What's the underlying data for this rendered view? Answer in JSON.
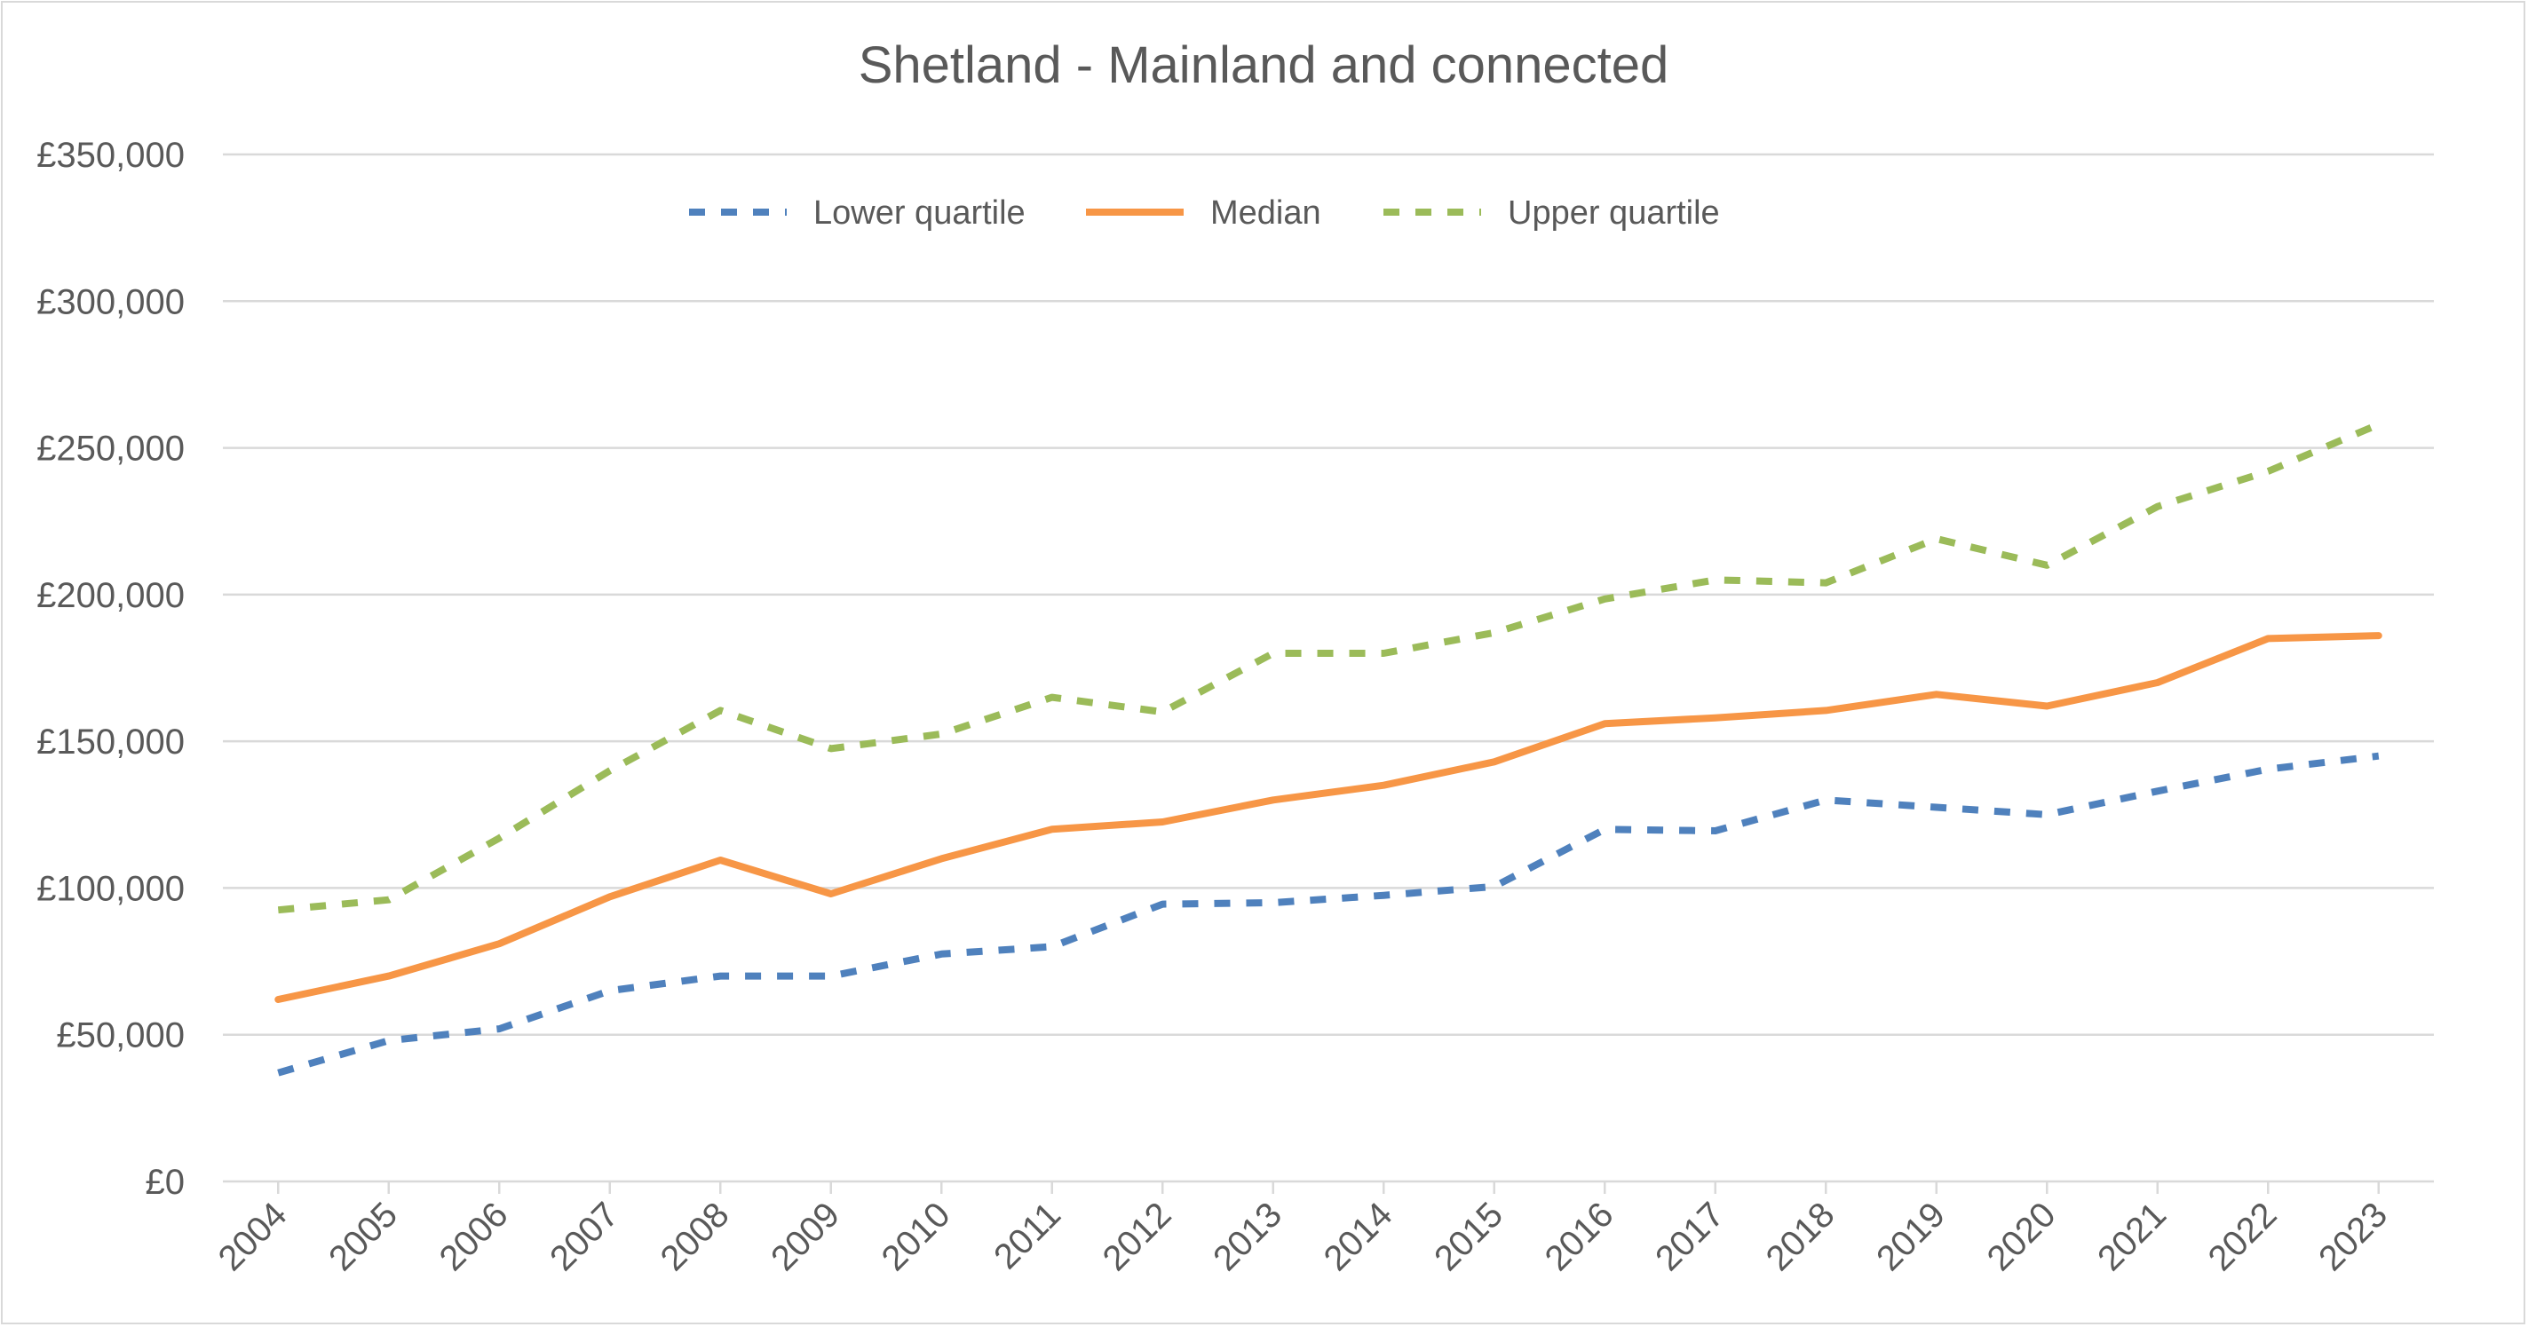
{
  "chart_data": {
    "type": "line",
    "title": "Shetland - Mainland and connected",
    "xlabel": "",
    "ylabel": "",
    "categories": [
      "2004",
      "2005",
      "2006",
      "2007",
      "2008",
      "2009",
      "2010",
      "2011",
      "2012",
      "2013",
      "2014",
      "2015",
      "2016",
      "2017",
      "2018",
      "2019",
      "2020",
      "2021",
      "2022",
      "2023"
    ],
    "ylim": [
      0,
      350000
    ],
    "yticks": [
      0,
      50000,
      100000,
      150000,
      200000,
      250000,
      300000,
      350000
    ],
    "ytick_labels": [
      "£0",
      "£50,000",
      "£100,000",
      "£150,000",
      "£200,000",
      "£250,000",
      "£300,000",
      "£350,000"
    ],
    "grid": true,
    "legend_position": "top-center",
    "series": [
      {
        "name": "Lower quartile",
        "color": "#4f81bd",
        "style": "dashed",
        "values": [
          37000,
          48000,
          52000,
          65000,
          70000,
          70000,
          77500,
          80000,
          94500,
          95000,
          97500,
          100500,
          120000,
          119500,
          130000,
          127500,
          125000,
          133000,
          140500,
          145000
        ]
      },
      {
        "name": "Median",
        "color": "#f79646",
        "style": "solid",
        "values": [
          62000,
          70000,
          81000,
          97000,
          109500,
          98000,
          110000,
          120000,
          122500,
          130000,
          135000,
          143000,
          156000,
          158000,
          160500,
          166000,
          162000,
          170000,
          185000,
          186000
        ]
      },
      {
        "name": "Upper quartile",
        "color": "#9bbb59",
        "style": "dashed",
        "values": [
          92500,
          96000,
          117000,
          140000,
          160500,
          147500,
          152500,
          165000,
          160000,
          180000,
          180000,
          187000,
          198500,
          205000,
          204000,
          219000,
          210000,
          230000,
          242000,
          258000
        ]
      }
    ]
  }
}
